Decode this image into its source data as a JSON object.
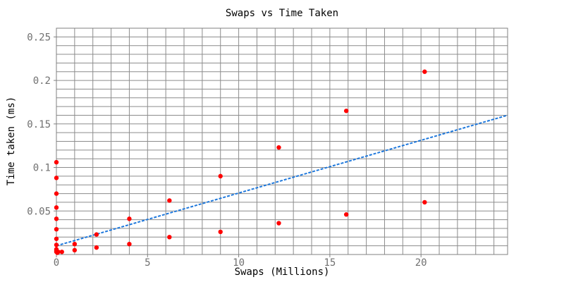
{
  "chart_data": {
    "type": "scatter",
    "title": "Swaps vs Time Taken",
    "xlabel": "Swaps (Millions)",
    "ylabel": "Time taken (ms)",
    "xlim": [
      0,
      24.75
    ],
    "ylim": [
      0,
      0.26
    ],
    "x_ticks": [
      {
        "value": 0,
        "label": "0"
      },
      {
        "value": 5,
        "label": "5"
      },
      {
        "value": 10,
        "label": "10"
      },
      {
        "value": 15,
        "label": "15"
      },
      {
        "value": 20,
        "label": "20"
      }
    ],
    "y_ticks": [
      {
        "value": 0.05,
        "label": "0.05"
      },
      {
        "value": 0.1,
        "label": "0.1"
      },
      {
        "value": 0.15,
        "label": "0.15"
      },
      {
        "value": 0.2,
        "label": "0.2"
      },
      {
        "value": 0.25,
        "label": "0.25"
      }
    ],
    "grid": true,
    "grid_minor_x_step": 1,
    "grid_minor_y_step": 0.01,
    "marker_color": "#ff0000",
    "trend_color": "#1e78dc",
    "points": [
      {
        "x": 0.0,
        "y": 0.106
      },
      {
        "x": 0.0,
        "y": 0.088
      },
      {
        "x": 0.0,
        "y": 0.07
      },
      {
        "x": 0.0,
        "y": 0.054
      },
      {
        "x": 0.0,
        "y": 0.041
      },
      {
        "x": 0.0,
        "y": 0.029
      },
      {
        "x": 0.0,
        "y": 0.018
      },
      {
        "x": 0.0,
        "y": 0.011
      },
      {
        "x": 0.0,
        "y": 0.006
      },
      {
        "x": 0.0,
        "y": 0.004
      },
      {
        "x": 0.0,
        "y": 0.003
      },
      {
        "x": 0.05,
        "y": 0.002
      },
      {
        "x": 0.1,
        "y": 0.003
      },
      {
        "x": 0.3,
        "y": 0.003
      },
      {
        "x": 1.0,
        "y": 0.005
      },
      {
        "x": 1.0,
        "y": 0.012
      },
      {
        "x": 2.2,
        "y": 0.008
      },
      {
        "x": 2.2,
        "y": 0.023
      },
      {
        "x": 4.0,
        "y": 0.012
      },
      {
        "x": 4.0,
        "y": 0.041
      },
      {
        "x": 6.2,
        "y": 0.02
      },
      {
        "x": 6.2,
        "y": 0.062
      },
      {
        "x": 9.0,
        "y": 0.026
      },
      {
        "x": 9.0,
        "y": 0.09
      },
      {
        "x": 12.2,
        "y": 0.036
      },
      {
        "x": 12.2,
        "y": 0.123
      },
      {
        "x": 15.9,
        "y": 0.046
      },
      {
        "x": 15.9,
        "y": 0.165
      },
      {
        "x": 20.2,
        "y": 0.06
      },
      {
        "x": 20.2,
        "y": 0.21
      }
    ],
    "trendline": {
      "x": [
        0,
        24.75
      ],
      "y": [
        0.01,
        0.16
      ]
    }
  }
}
